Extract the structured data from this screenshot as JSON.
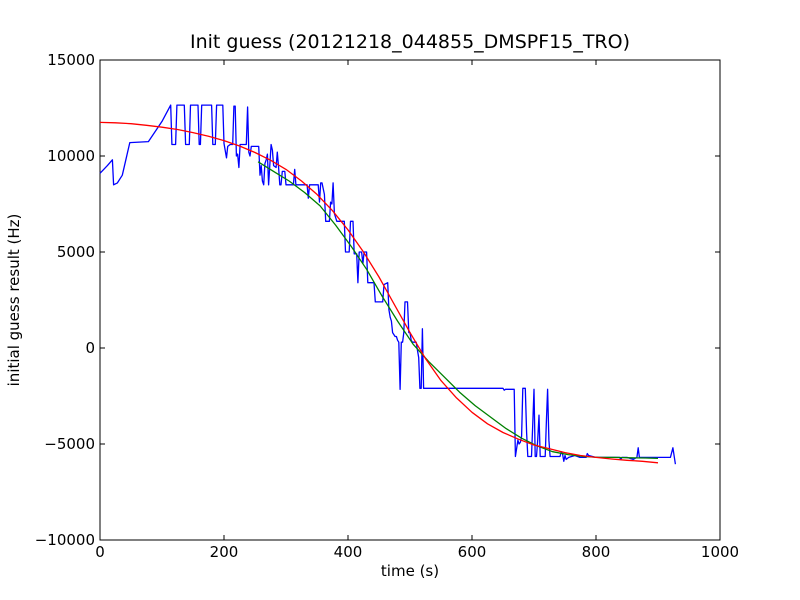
{
  "chart_data": {
    "type": "line",
    "title": "Init guess (20121218_044855_DMSPF15_TRO)",
    "xlabel": "time (s)",
    "ylabel": "initial guess result (Hz)",
    "xlim": [
      0,
      1000
    ],
    "ylim": [
      -10000,
      15000
    ],
    "xticks": [
      0,
      200,
      400,
      600,
      800,
      1000
    ],
    "yticks": [
      -10000,
      -5000,
      0,
      5000,
      10000,
      15000
    ],
    "grid": false,
    "legend": "none",
    "series": [
      {
        "color": "#0000ff",
        "points": [
          [
            0,
            9100
          ],
          [
            12,
            9500
          ],
          [
            20,
            9800
          ],
          [
            22,
            8500
          ],
          [
            28,
            8600
          ],
          [
            36,
            9000
          ],
          [
            48,
            10700
          ],
          [
            78,
            10750
          ],
          [
            100,
            11800
          ],
          [
            114,
            12650
          ],
          [
            116,
            10600
          ],
          [
            122,
            10600
          ],
          [
            124,
            12650
          ],
          [
            136,
            12650
          ],
          [
            138,
            10600
          ],
          [
            144,
            10600
          ],
          [
            146,
            12650
          ],
          [
            158,
            12650
          ],
          [
            160,
            10600
          ],
          [
            162,
            10600
          ],
          [
            164,
            12650
          ],
          [
            180,
            12650
          ],
          [
            182,
            10600
          ],
          [
            186,
            10600
          ],
          [
            188,
            12650
          ],
          [
            198,
            12650
          ],
          [
            200,
            10650
          ],
          [
            204,
            9900
          ],
          [
            206,
            10500
          ],
          [
            210,
            10600
          ],
          [
            214,
            10600
          ],
          [
            216,
            12600
          ],
          [
            218,
            12600
          ],
          [
            220,
            10000
          ],
          [
            222,
            10100
          ],
          [
            224,
            9400
          ],
          [
            226,
            10600
          ],
          [
            236,
            10600
          ],
          [
            238,
            12550
          ],
          [
            240,
            10200
          ],
          [
            242,
            10000
          ],
          [
            244,
            10500
          ],
          [
            256,
            10500
          ],
          [
            258,
            9000
          ],
          [
            260,
            9500
          ],
          [
            262,
            8700
          ],
          [
            264,
            8500
          ],
          [
            266,
            9600
          ],
          [
            268,
            9800
          ],
          [
            270,
            10100
          ],
          [
            272,
            8500
          ],
          [
            274,
            9600
          ],
          [
            276,
            10600
          ],
          [
            278,
            10300
          ],
          [
            280,
            9500
          ],
          [
            284,
            9400
          ],
          [
            286,
            10200
          ],
          [
            288,
            9400
          ],
          [
            290,
            8500
          ],
          [
            292,
            8500
          ],
          [
            294,
            9200
          ],
          [
            298,
            9200
          ],
          [
            300,
            8500
          ],
          [
            312,
            8500
          ],
          [
            314,
            9300
          ],
          [
            316,
            8500
          ],
          [
            334,
            8500
          ],
          [
            336,
            7800
          ],
          [
            338,
            8500
          ],
          [
            352,
            8500
          ],
          [
            354,
            7600
          ],
          [
            356,
            8600
          ],
          [
            358,
            8600
          ],
          [
            362,
            8000
          ],
          [
            364,
            6600
          ],
          [
            370,
            6600
          ],
          [
            372,
            7600
          ],
          [
            374,
            7500
          ],
          [
            376,
            8600
          ],
          [
            378,
            7000
          ],
          [
            382,
            6600
          ],
          [
            394,
            6600
          ],
          [
            396,
            5000
          ],
          [
            402,
            5000
          ],
          [
            404,
            6600
          ],
          [
            408,
            6600
          ],
          [
            410,
            4900
          ],
          [
            414,
            4900
          ],
          [
            416,
            3400
          ],
          [
            418,
            5000
          ],
          [
            422,
            5000
          ],
          [
            424,
            4400
          ],
          [
            426,
            5000
          ],
          [
            430,
            5000
          ],
          [
            432,
            3400
          ],
          [
            442,
            3400
          ],
          [
            444,
            2400
          ],
          [
            456,
            2400
          ],
          [
            458,
            3300
          ],
          [
            464,
            3400
          ],
          [
            466,
            2000
          ],
          [
            468,
            1600
          ],
          [
            470,
            1400
          ],
          [
            472,
            800
          ],
          [
            474,
            700
          ],
          [
            476,
            600
          ],
          [
            478,
            600
          ],
          [
            480,
            400
          ],
          [
            482,
            300
          ],
          [
            484,
            -2150
          ],
          [
            486,
            300
          ],
          [
            488,
            300
          ],
          [
            490,
            800
          ],
          [
            492,
            2400
          ],
          [
            496,
            2400
          ],
          [
            498,
            800
          ],
          [
            500,
            800
          ],
          [
            502,
            400
          ],
          [
            504,
            300
          ],
          [
            510,
            300
          ],
          [
            512,
            -100
          ],
          [
            514,
            -500
          ],
          [
            516,
            -2100
          ],
          [
            518,
            -2100
          ],
          [
            520,
            1000
          ],
          [
            522,
            -2100
          ],
          [
            650,
            -2100
          ],
          [
            652,
            -2200
          ],
          [
            654,
            -2150
          ],
          [
            668,
            -2150
          ],
          [
            670,
            -5650
          ],
          [
            674,
            -4800
          ],
          [
            676,
            -5000
          ],
          [
            678,
            -4900
          ],
          [
            680,
            -4600
          ],
          [
            682,
            -2100
          ],
          [
            686,
            -2100
          ],
          [
            688,
            -4400
          ],
          [
            690,
            -5650
          ],
          [
            696,
            -5650
          ],
          [
            698,
            -3900
          ],
          [
            700,
            -2150
          ],
          [
            702,
            -5650
          ],
          [
            704,
            -5650
          ],
          [
            706,
            -4800
          ],
          [
            708,
            -3500
          ],
          [
            710,
            -5650
          ],
          [
            718,
            -5650
          ],
          [
            720,
            -3800
          ],
          [
            722,
            -2150
          ],
          [
            724,
            -4800
          ],
          [
            726,
            -5650
          ],
          [
            742,
            -5650
          ],
          [
            744,
            -5400
          ],
          [
            746,
            -5500
          ],
          [
            748,
            -5900
          ],
          [
            750,
            -5600
          ],
          [
            752,
            -5800
          ],
          [
            756,
            -5700
          ],
          [
            766,
            -5600
          ],
          [
            774,
            -5700
          ],
          [
            784,
            -5700
          ],
          [
            786,
            -5500
          ],
          [
            788,
            -5600
          ],
          [
            800,
            -5700
          ],
          [
            838,
            -5700
          ],
          [
            840,
            -5800
          ],
          [
            842,
            -5700
          ],
          [
            850,
            -5700
          ],
          [
            860,
            -5800
          ],
          [
            866,
            -5700
          ],
          [
            868,
            -5200
          ],
          [
            870,
            -5700
          ],
          [
            898,
            -5700
          ],
          [
            900,
            -5700
          ],
          [
            920,
            -5700
          ],
          [
            924,
            -5200
          ],
          [
            928,
            -6050
          ]
        ]
      },
      {
        "color": "#008000",
        "points": [
          [
            255,
            9700
          ],
          [
            280,
            9200
          ],
          [
            305,
            8700
          ],
          [
            330,
            8100
          ],
          [
            355,
            7400
          ],
          [
            380,
            6400
          ],
          [
            405,
            5300
          ],
          [
            430,
            4100
          ],
          [
            455,
            2700
          ],
          [
            480,
            1400
          ],
          [
            505,
            200
          ],
          [
            530,
            -700
          ],
          [
            555,
            -1500
          ],
          [
            580,
            -2300
          ],
          [
            605,
            -3000
          ],
          [
            630,
            -3600
          ],
          [
            655,
            -4200
          ],
          [
            680,
            -4700
          ],
          [
            705,
            -5100
          ],
          [
            730,
            -5400
          ],
          [
            755,
            -5550
          ],
          [
            780,
            -5650
          ],
          [
            805,
            -5700
          ],
          [
            830,
            -5700
          ],
          [
            855,
            -5720
          ],
          [
            880,
            -5730
          ],
          [
            900,
            -5750
          ]
        ]
      },
      {
        "color": "#ff0000",
        "points": [
          [
            0,
            11750
          ],
          [
            25,
            11730
          ],
          [
            50,
            11680
          ],
          [
            75,
            11600
          ],
          [
            100,
            11500
          ],
          [
            125,
            11380
          ],
          [
            150,
            11220
          ],
          [
            175,
            11030
          ],
          [
            200,
            10800
          ],
          [
            225,
            10520
          ],
          [
            250,
            10180
          ],
          [
            275,
            9780
          ],
          [
            300,
            9300
          ],
          [
            325,
            8700
          ],
          [
            350,
            8000
          ],
          [
            375,
            7150
          ],
          [
            400,
            6150
          ],
          [
            425,
            5000
          ],
          [
            450,
            3700
          ],
          [
            475,
            2250
          ],
          [
            500,
            800
          ],
          [
            525,
            -550
          ],
          [
            550,
            -1700
          ],
          [
            575,
            -2600
          ],
          [
            600,
            -3350
          ],
          [
            625,
            -3950
          ],
          [
            650,
            -4400
          ],
          [
            675,
            -4750
          ],
          [
            700,
            -5050
          ],
          [
            725,
            -5250
          ],
          [
            750,
            -5450
          ],
          [
            775,
            -5600
          ],
          [
            800,
            -5700
          ],
          [
            825,
            -5780
          ],
          [
            850,
            -5850
          ],
          [
            875,
            -5900
          ],
          [
            900,
            -5980
          ]
        ]
      }
    ]
  }
}
